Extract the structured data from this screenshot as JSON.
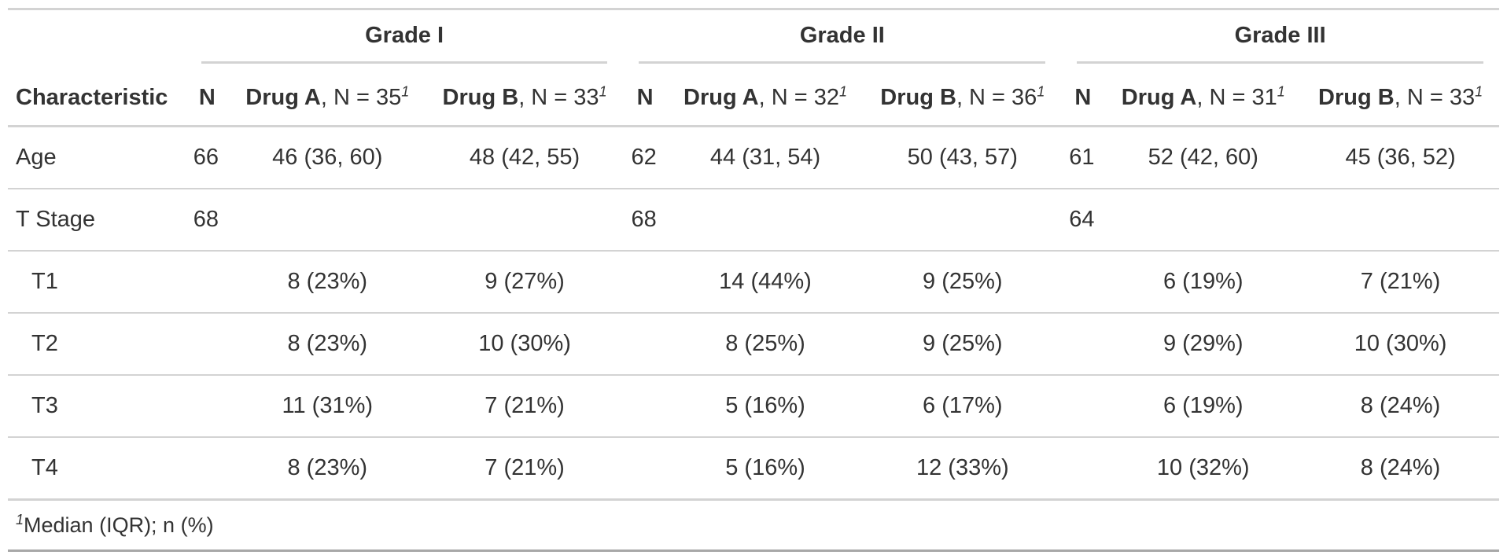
{
  "table": {
    "spanners": [
      "Grade I",
      "Grade II",
      "Grade III"
    ],
    "characteristic_header": "Characteristic",
    "n_header": "N",
    "drug_a_name": "Drug A",
    "drug_b_name": "Drug B",
    "group_headers": [
      {
        "drug_a_n": ", N = 35",
        "drug_b_n": ", N = 33"
      },
      {
        "drug_a_n": ", N = 32",
        "drug_b_n": ", N = 36"
      },
      {
        "drug_a_n": ", N = 31",
        "drug_b_n": ", N = 33"
      }
    ],
    "footnote_mark": "1",
    "rows": [
      {
        "label": "Age",
        "indent": false,
        "cells": [
          "66",
          "46 (36, 60)",
          "48 (42, 55)",
          "62",
          "44 (31, 54)",
          "50 (43, 57)",
          "61",
          "52 (42, 60)",
          "45 (36, 52)"
        ]
      },
      {
        "label": "T Stage",
        "indent": false,
        "cells": [
          "68",
          "",
          "",
          "68",
          "",
          "",
          "64",
          "",
          ""
        ]
      },
      {
        "label": "T1",
        "indent": true,
        "cells": [
          "",
          "8 (23%)",
          "9 (27%)",
          "",
          "14 (44%)",
          "9 (25%)",
          "",
          "6 (19%)",
          "7 (21%)"
        ]
      },
      {
        "label": "T2",
        "indent": true,
        "cells": [
          "",
          "8 (23%)",
          "10 (30%)",
          "",
          "8 (25%)",
          "9 (25%)",
          "",
          "9 (29%)",
          "10 (30%)"
        ]
      },
      {
        "label": "T3",
        "indent": true,
        "cells": [
          "",
          "11 (31%)",
          "7 (21%)",
          "",
          "5 (16%)",
          "6 (17%)",
          "",
          "6 (19%)",
          "8 (24%)"
        ]
      },
      {
        "label": "T4",
        "indent": true,
        "cells": [
          "",
          "8 (23%)",
          "7 (21%)",
          "",
          "5 (16%)",
          "12 (33%)",
          "",
          "10 (32%)",
          "8 (24%)"
        ]
      }
    ],
    "footnote_text": "Median (IQR); n (%)"
  }
}
